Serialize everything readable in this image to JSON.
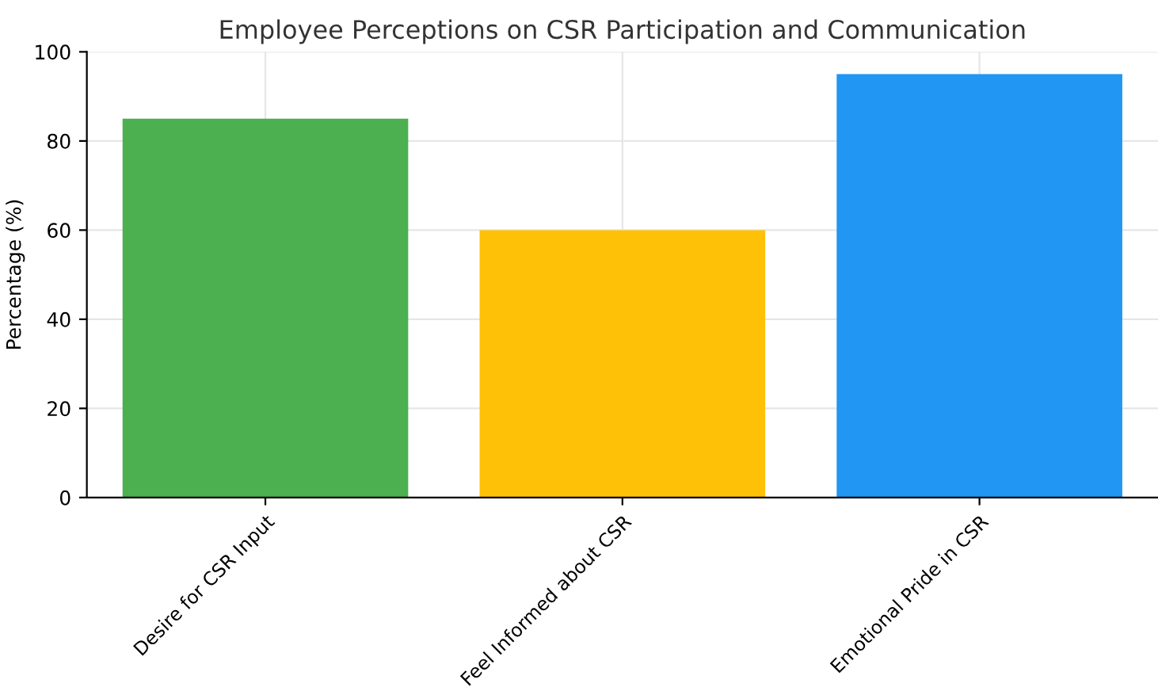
{
  "chart_data": {
    "type": "bar",
    "title": "Employee Perceptions on CSR Participation and Communication",
    "ylabel": "Percentage (%)",
    "categories": [
      "Desire for CSR Input",
      "Feel Informed about CSR",
      "Emotional Pride in CSR"
    ],
    "values": [
      85,
      60,
      95
    ],
    "colors": [
      "#4caf50",
      "#ffc107",
      "#2196f3"
    ],
    "ylim": [
      0,
      100
    ],
    "yticks": [
      0,
      20,
      40,
      60,
      80,
      100
    ],
    "grid": true
  }
}
